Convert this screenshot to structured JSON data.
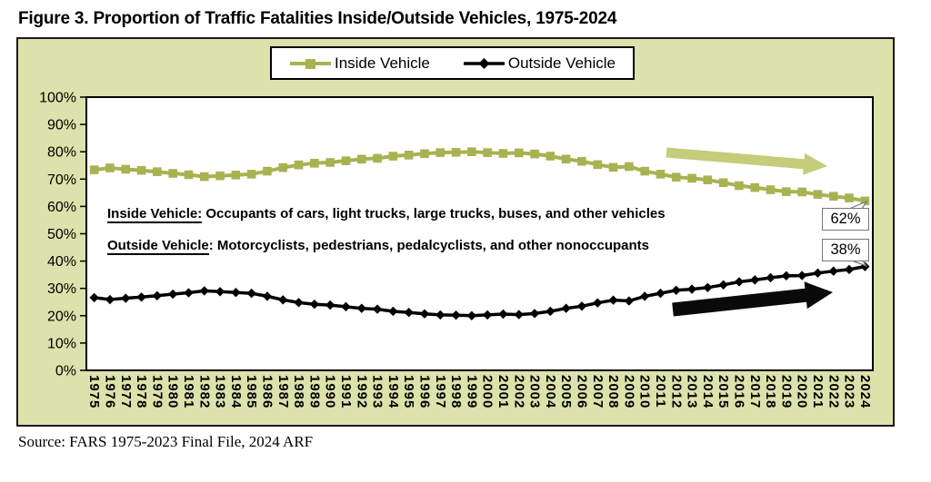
{
  "title": "Figure 3. Proportion of Traffic Fatalities Inside/Outside Vehicles, 1975-2024",
  "source": "Source: FARS 1975-2023 Final File, 2024 ARF",
  "legend": {
    "inside": "Inside Vehicle",
    "outside": "Outside Vehicle"
  },
  "definitions": [
    {
      "term": "Inside Vehicle:",
      "rest": " Occupants of cars, light trucks, large trucks, buses, and other vehicles"
    },
    {
      "term": "Outside Vehicle",
      "rest": ": Motorcyclists, pedestrians, pedalcyclists, and other nonoccupants"
    }
  ],
  "end_labels": {
    "inside": "62%",
    "outside": "38%"
  },
  "colors": {
    "panel_bg": "#dbe2ab",
    "inside_line": "#a7b351",
    "inside_arrow": "#c5cc7a",
    "outside_line": "#000000",
    "callout_border": "#767676"
  },
  "chart_data": {
    "type": "line",
    "title": "Figure 3. Proportion of Traffic Fatalities Inside/Outside Vehicles, 1975-2024",
    "xlabel": "",
    "ylabel": "",
    "ylim": [
      0,
      100
    ],
    "grid": false,
    "legend_position": "top-center",
    "y_ticks": [
      "0%",
      "10%",
      "20%",
      "30%",
      "40%",
      "50%",
      "60%",
      "70%",
      "80%",
      "90%",
      "100%"
    ],
    "x": [
      "1975",
      "1976",
      "1977",
      "1978",
      "1979",
      "1980",
      "1981",
      "1982",
      "1983",
      "1984",
      "1985",
      "1986",
      "1987",
      "1988",
      "1989",
      "1990",
      "1991",
      "1992",
      "1993",
      "1994",
      "1995",
      "1996",
      "1997",
      "1998",
      "1999",
      "2000",
      "2001",
      "2002",
      "2003",
      "2004",
      "2005",
      "2006",
      "2007",
      "2008",
      "2009",
      "2010",
      "2011",
      "2012",
      "2013",
      "2014",
      "2015",
      "2016",
      "2017",
      "2018",
      "2019",
      "2020",
      "2021",
      "2022",
      "2023",
      "2024"
    ],
    "series": [
      {
        "name": "Inside Vehicle",
        "marker": "square",
        "color": "#a7b351",
        "values": [
          73.4,
          74.1,
          73.6,
          73.2,
          72.7,
          72.1,
          71.6,
          70.9,
          71.2,
          71.5,
          71.8,
          72.9,
          74.2,
          75.2,
          75.8,
          76.1,
          76.7,
          77.3,
          77.6,
          78.4,
          78.8,
          79.3,
          79.7,
          79.8,
          80.0,
          79.7,
          79.4,
          79.6,
          79.2,
          78.4,
          77.3,
          76.5,
          75.3,
          74.3,
          74.6,
          72.9,
          71.8,
          70.7,
          70.3,
          69.7,
          68.7,
          67.6,
          66.9,
          66.1,
          65.4,
          65.3,
          64.4,
          63.7,
          63.1,
          62.0
        ]
      },
      {
        "name": "Outside Vehicle",
        "marker": "diamond",
        "color": "#000000",
        "values": [
          26.6,
          25.9,
          26.4,
          26.8,
          27.3,
          27.9,
          28.4,
          29.1,
          28.8,
          28.5,
          28.2,
          27.1,
          25.8,
          24.8,
          24.2,
          23.9,
          23.3,
          22.7,
          22.4,
          21.6,
          21.2,
          20.7,
          20.3,
          20.2,
          20.0,
          20.3,
          20.6,
          20.4,
          20.8,
          21.6,
          22.7,
          23.5,
          24.7,
          25.7,
          25.4,
          27.1,
          28.2,
          29.3,
          29.7,
          30.3,
          31.3,
          32.4,
          33.1,
          33.9,
          34.6,
          34.7,
          35.6,
          36.3,
          36.9,
          38.0
        ]
      }
    ],
    "end_labels": [
      {
        "series": "Inside Vehicle",
        "text": "62%"
      },
      {
        "series": "Outside Vehicle",
        "text": "38%"
      }
    ],
    "trend_arrows": [
      {
        "name": "inside-trend-arrow",
        "series": "Inside Vehicle",
        "direction": "right-slightly-down",
        "color": "#c5cc7a"
      },
      {
        "name": "outside-trend-arrow",
        "series": "Outside Vehicle",
        "direction": "right-slightly-up",
        "color": "#0a0a0a"
      }
    ]
  }
}
